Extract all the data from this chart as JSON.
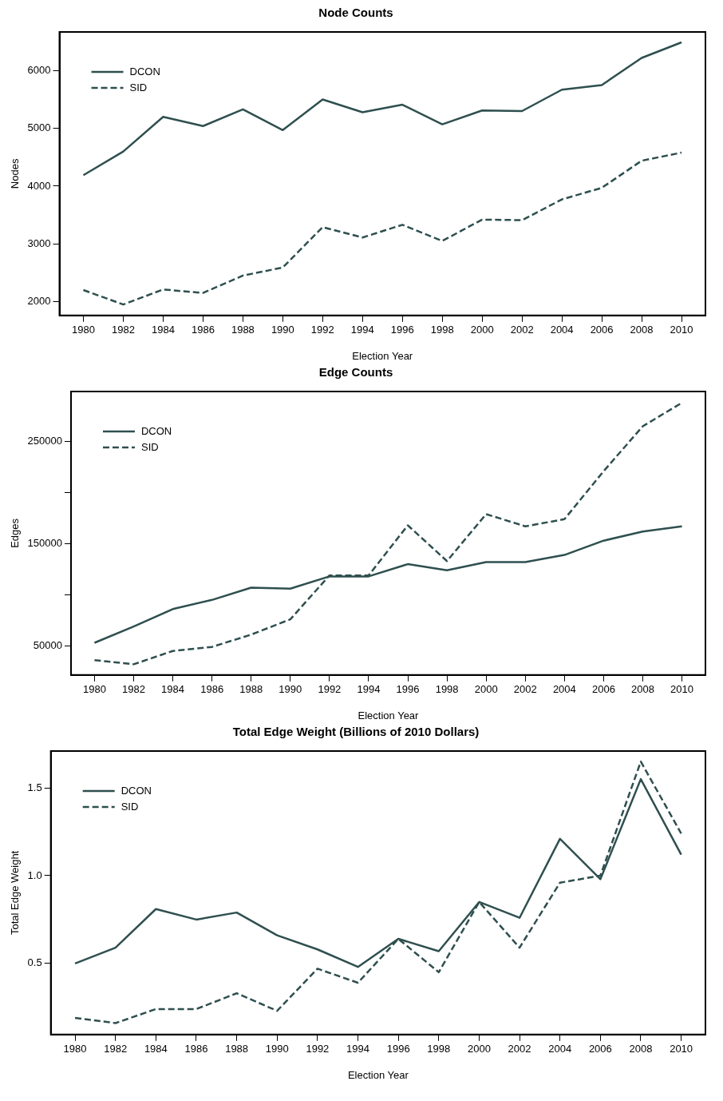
{
  "chart_data": [
    {
      "type": "line",
      "title": "Node Counts",
      "xlabel": "Election Year",
      "ylabel": "Nodes",
      "x": [
        1980,
        1982,
        1984,
        1986,
        1988,
        1990,
        1992,
        1994,
        1996,
        1998,
        2000,
        2002,
        2004,
        2006,
        2008,
        2010
      ],
      "xlim": [
        1978.8,
        2011.2
      ],
      "xticks": [
        1980,
        1982,
        1984,
        1986,
        1988,
        1990,
        1992,
        1994,
        1996,
        1998,
        2000,
        2002,
        2004,
        2006,
        2008,
        2010
      ],
      "ylim": [
        1760,
        6670
      ],
      "yticks": [
        2000,
        3000,
        4000,
        5000,
        6000
      ],
      "grid": false,
      "legend": "top left",
      "marker": "none",
      "series": [
        {
          "name": "DCON",
          "color": "#2f4f4f",
          "line_style": "solid",
          "values": [
            4190,
            4600,
            5200,
            5040,
            5330,
            4970,
            5500,
            5280,
            5410,
            5070,
            5310,
            5300,
            5670,
            5750,
            6220,
            6490
          ]
        },
        {
          "name": "SID",
          "color": "#2f4f4f",
          "line_style": "dashed",
          "values": [
            2200,
            1950,
            2210,
            2150,
            2450,
            2590,
            3290,
            3110,
            3330,
            3050,
            3420,
            3410,
            3770,
            3970,
            4440,
            4580
          ]
        }
      ]
    },
    {
      "type": "line",
      "title": "Edge Counts",
      "xlabel": "Election Year",
      "ylabel": "Edges",
      "x": [
        1980,
        1982,
        1984,
        1986,
        1988,
        1990,
        1992,
        1994,
        1996,
        1998,
        2000,
        2002,
        2004,
        2006,
        2008,
        2010
      ],
      "xlim": [
        1978.8,
        2011.2
      ],
      "xticks": [
        1980,
        1982,
        1984,
        1986,
        1988,
        1990,
        1992,
        1994,
        1996,
        1998,
        2000,
        2002,
        2004,
        2006,
        2008,
        2010
      ],
      "ylim": [
        21500,
        299000
      ],
      "yticks": [
        50000,
        {
          "value": 100000,
          "label": null
        },
        150000,
        {
          "value": 200000,
          "label": null
        },
        250000
      ],
      "grid": false,
      "legend": "top left",
      "marker": "none",
      "series": [
        {
          "name": "DCON",
          "color": "#2f4f4f",
          "line_style": "solid",
          "values": [
            53000,
            69000,
            86000,
            95000,
            107000,
            106000,
            118000,
            118000,
            130000,
            124000,
            132000,
            132000,
            139000,
            153000,
            162000,
            167000
          ]
        },
        {
          "name": "SID",
          "color": "#2f4f4f",
          "line_style": "dashed",
          "values": [
            36000,
            32000,
            45000,
            49000,
            61000,
            76000,
            119000,
            119000,
            168000,
            133000,
            179000,
            167000,
            174000,
            221000,
            265000,
            288000
          ]
        }
      ]
    },
    {
      "type": "line",
      "title": "Total Edge Weight (Billions of 2010 Dollars)",
      "xlabel": "Election Year",
      "ylabel": "Total Edge Weight",
      "x": [
        1980,
        1982,
        1984,
        1986,
        1988,
        1990,
        1992,
        1994,
        1996,
        1998,
        2000,
        2002,
        2004,
        2006,
        2008,
        2010
      ],
      "xlim": [
        1978.8,
        2011.2
      ],
      "xticks": [
        1980,
        1982,
        1984,
        1986,
        1988,
        1990,
        1992,
        1994,
        1996,
        1998,
        2000,
        2002,
        2004,
        2006,
        2008,
        2010
      ],
      "ylim": [
        0.095,
        1.71
      ],
      "yticks": [
        {
          "value": 0.5,
          "label": "0.5"
        },
        {
          "value": 1,
          "label": "1.0"
        },
        {
          "value": 1.5,
          "label": "1.5"
        }
      ],
      "grid": false,
      "legend": "top left",
      "marker": "none",
      "series": [
        {
          "name": "DCON",
          "color": "#2f4f4f",
          "line_style": "solid",
          "values": [
            0.5,
            0.59,
            0.81,
            0.75,
            0.79,
            0.66,
            0.58,
            0.48,
            0.64,
            0.57,
            0.85,
            0.76,
            1.21,
            0.98,
            1.55,
            1.12
          ]
        },
        {
          "name": "SID",
          "color": "#2f4f4f",
          "line_style": "dashed",
          "values": [
            0.19,
            0.16,
            0.24,
            0.24,
            0.33,
            0.23,
            0.47,
            0.39,
            0.64,
            0.45,
            0.85,
            0.59,
            0.96,
            1.0,
            1.65,
            1.24
          ]
        }
      ]
    }
  ]
}
